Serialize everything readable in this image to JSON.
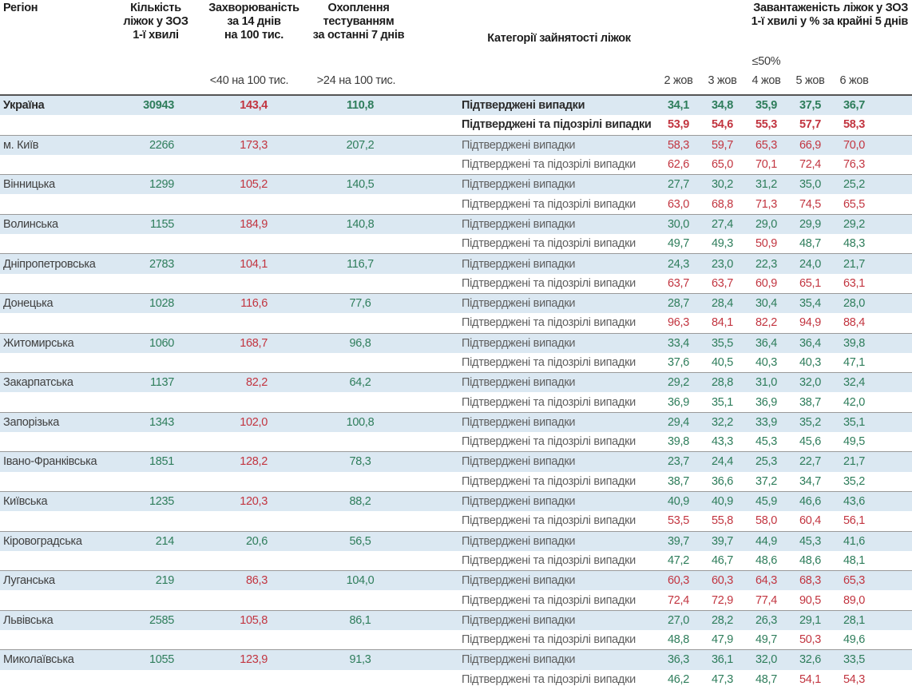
{
  "header": {
    "col_region": "Регіон",
    "col_beds": "Кількість\nліжок у ЗОЗ\n1-ї хвилі",
    "col_incidence": "Захворюваність\nза 14 днів\nна 100 тис.",
    "col_testing": "Охоплення\nтестуванням\nза останні 7 днів",
    "col_categories": "Категорії зайнятості ліжок",
    "col_occupancy": "Завантаженість ліжок у ЗОЗ\n1-ї хвилі у % за крайні 5 днів",
    "sub_incidence": "<40 на 100 тис.",
    "sub_testing": ">24 на 100 тис.",
    "sub_occupancy": "≤50%",
    "dates": [
      "2 жов",
      "3 жов",
      "4 жов",
      "5 жов",
      "6 жов"
    ]
  },
  "categories": {
    "confirmed": "Підтверджені випадки",
    "suspected": "Підтверджені та підозрілі випадки"
  },
  "colors": {
    "green": "#2e7d5b",
    "red": "#c23540",
    "row_band": "#dbe8f2"
  },
  "thresholds": {
    "incidence_green_below": 40,
    "testing_green_above": 24,
    "occupancy_red_above": 50
  },
  "regions": [
    {
      "name": "Україна",
      "bold": true,
      "beds": "30943",
      "incidence": "143,4",
      "testing": "110,8",
      "confirmed": [
        "34,1",
        "34,8",
        "35,9",
        "37,5",
        "36,7"
      ],
      "suspected": [
        "53,9",
        "54,6",
        "55,3",
        "57,7",
        "58,3"
      ]
    },
    {
      "name": "м. Київ",
      "bold": false,
      "beds": "2266",
      "incidence": "173,3",
      "testing": "207,2",
      "confirmed": [
        "58,3",
        "59,7",
        "65,3",
        "66,9",
        "70,0"
      ],
      "suspected": [
        "62,6",
        "65,0",
        "70,1",
        "72,4",
        "76,3"
      ]
    },
    {
      "name": "Вінницька",
      "bold": false,
      "beds": "1299",
      "incidence": "105,2",
      "testing": "140,5",
      "confirmed": [
        "27,7",
        "30,2",
        "31,2",
        "35,0",
        "25,2"
      ],
      "suspected": [
        "63,0",
        "68,8",
        "71,3",
        "74,5",
        "65,5"
      ]
    },
    {
      "name": "Волинська",
      "bold": false,
      "beds": "1155",
      "incidence": "184,9",
      "testing": "140,8",
      "confirmed": [
        "30,0",
        "27,4",
        "29,0",
        "29,9",
        "29,2"
      ],
      "suspected": [
        "49,7",
        "49,3",
        "50,9",
        "48,7",
        "48,3"
      ]
    },
    {
      "name": "Дніпропетровська",
      "bold": false,
      "beds": "2783",
      "incidence": "104,1",
      "testing": "116,7",
      "confirmed": [
        "24,3",
        "23,0",
        "22,3",
        "24,0",
        "21,7"
      ],
      "suspected": [
        "63,7",
        "63,7",
        "60,9",
        "65,1",
        "63,1"
      ]
    },
    {
      "name": "Донецька",
      "bold": false,
      "beds": "1028",
      "incidence": "116,6",
      "testing": "77,6",
      "confirmed": [
        "28,7",
        "28,4",
        "30,4",
        "35,4",
        "28,0"
      ],
      "suspected": [
        "96,3",
        "84,1",
        "82,2",
        "94,9",
        "88,4"
      ]
    },
    {
      "name": "Житомирська",
      "bold": false,
      "beds": "1060",
      "incidence": "168,7",
      "testing": "96,8",
      "confirmed": [
        "33,4",
        "35,5",
        "36,4",
        "36,4",
        "39,8"
      ],
      "suspected": [
        "37,6",
        "40,5",
        "40,3",
        "40,3",
        "47,1"
      ]
    },
    {
      "name": "Закарпатська",
      "bold": false,
      "beds": "1137",
      "incidence": "82,2",
      "testing": "64,2",
      "confirmed": [
        "29,2",
        "28,8",
        "31,0",
        "32,0",
        "32,4"
      ],
      "suspected": [
        "36,9",
        "35,1",
        "36,9",
        "38,7",
        "42,0"
      ]
    },
    {
      "name": "Запорізька",
      "bold": false,
      "beds": "1343",
      "incidence": "102,0",
      "testing": "100,8",
      "confirmed": [
        "29,4",
        "32,2",
        "33,9",
        "35,2",
        "35,1"
      ],
      "suspected": [
        "39,8",
        "43,3",
        "45,3",
        "45,6",
        "49,5"
      ]
    },
    {
      "name": "Івано-Франківська",
      "bold": false,
      "beds": "1851",
      "incidence": "128,2",
      "testing": "78,3",
      "confirmed": [
        "23,7",
        "24,4",
        "25,3",
        "22,7",
        "21,7"
      ],
      "suspected": [
        "38,7",
        "36,6",
        "37,2",
        "34,7",
        "35,2"
      ]
    },
    {
      "name": "Київська",
      "bold": false,
      "beds": "1235",
      "incidence": "120,3",
      "testing": "88,2",
      "confirmed": [
        "40,9",
        "40,9",
        "45,9",
        "46,6",
        "43,6"
      ],
      "suspected": [
        "53,5",
        "55,8",
        "58,0",
        "60,4",
        "56,1"
      ]
    },
    {
      "name": "Кіровоградська",
      "bold": false,
      "beds": "214",
      "incidence": "20,6",
      "testing": "56,5",
      "confirmed": [
        "39,7",
        "39,7",
        "44,9",
        "45,3",
        "41,6"
      ],
      "suspected": [
        "47,2",
        "46,7",
        "48,6",
        "48,6",
        "48,1"
      ]
    },
    {
      "name": "Луганська",
      "bold": false,
      "beds": "219",
      "incidence": "86,3",
      "testing": "104,0",
      "confirmed": [
        "60,3",
        "60,3",
        "64,3",
        "68,3",
        "65,3"
      ],
      "suspected": [
        "72,4",
        "72,9",
        "77,4",
        "90,5",
        "89,0"
      ]
    },
    {
      "name": "Львівська",
      "bold": false,
      "beds": "2585",
      "incidence": "105,8",
      "testing": "86,1",
      "confirmed": [
        "27,0",
        "28,2",
        "26,3",
        "29,1",
        "28,1"
      ],
      "suspected": [
        "48,8",
        "47,9",
        "49,7",
        "50,3",
        "49,6"
      ]
    },
    {
      "name": "Миколаївська",
      "bold": false,
      "beds": "1055",
      "incidence": "123,9",
      "testing": "91,3",
      "confirmed": [
        "36,3",
        "36,1",
        "32,0",
        "32,6",
        "33,5"
      ],
      "suspected": [
        "46,2",
        "47,3",
        "48,7",
        "54,1",
        "54,3"
      ]
    }
  ]
}
